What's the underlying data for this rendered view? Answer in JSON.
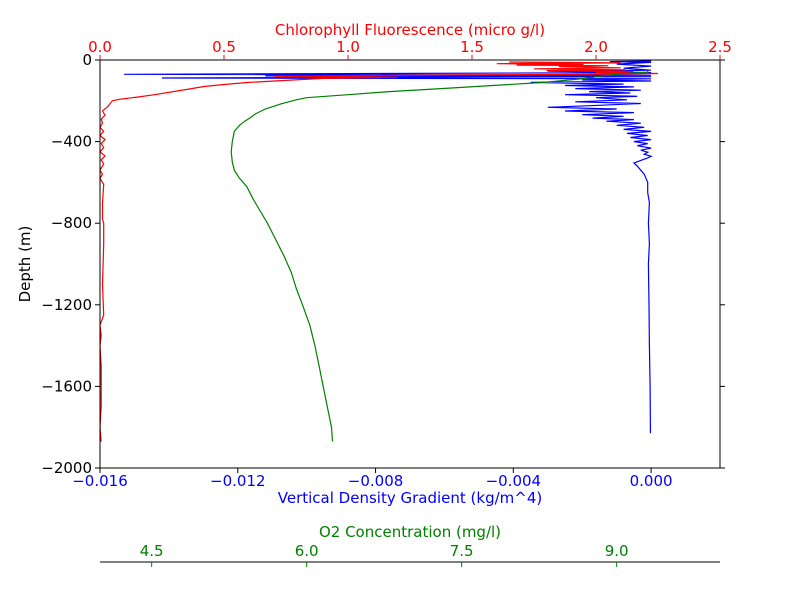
{
  "chart_data": {
    "type": "line",
    "colors": {
      "density": "#0000ff",
      "chlorophyll": "#ff0000",
      "oxygen": "#008000",
      "axis": "#000000"
    },
    "depth_axis": {
      "label": "Depth (m)",
      "ylim": [
        -2000,
        0
      ],
      "ticks": [
        0,
        -400,
        -800,
        -1200,
        -1600,
        -2000
      ],
      "tick_labels": [
        "0",
        "−400",
        "−800",
        "−1200",
        "−1600",
        "−2000"
      ]
    },
    "density_axis": {
      "label": "Vertical Density Gradient (kg/m^4)",
      "xlim": [
        -0.016,
        0.002
      ],
      "ticks": [
        -0.016,
        -0.012,
        -0.008,
        -0.004,
        0.0
      ],
      "tick_labels": [
        "−0.016",
        "−0.012",
        "−0.008",
        "−0.004",
        "0.000"
      ]
    },
    "chlorophyll_axis": {
      "label": "Chlorophyll Fluorescence (micro g/l)",
      "xlim": [
        0,
        2.5
      ],
      "ticks": [
        0,
        0.5,
        1.0,
        1.5,
        2.0,
        2.5
      ],
      "tick_labels": [
        "0.0",
        "0.5",
        "1.0",
        "1.5",
        "2.0",
        "2.5"
      ]
    },
    "oxygen_axis": {
      "label": "O2 Concentration (mg/l)",
      "xlim": [
        4.0,
        10.0
      ],
      "ticks": [
        4.5,
        6.0,
        7.5,
        9.0
      ],
      "tick_labels": [
        "4.5",
        "6.0",
        "7.5",
        "9.0"
      ]
    },
    "series": [
      {
        "key": "density",
        "axis": "density_axis",
        "points": [
          [
            0.0,
            -5
          ],
          [
            -0.0012,
            -8
          ],
          [
            0.0,
            -12
          ],
          [
            -0.001,
            -20
          ],
          [
            0.0,
            -30
          ],
          [
            -0.0008,
            -40
          ],
          [
            0.0,
            -50
          ],
          [
            -0.003,
            -55
          ],
          [
            0.0,
            -62
          ],
          [
            -0.0153,
            -70
          ],
          [
            0.0,
            -75
          ],
          [
            -0.0112,
            -78
          ],
          [
            0.0,
            -82
          ],
          [
            -0.0142,
            -88
          ],
          [
            0.0,
            -92
          ],
          [
            -0.002,
            -98
          ],
          [
            0.0,
            -103
          ],
          [
            -0.0035,
            -110
          ],
          [
            -0.0008,
            -118
          ],
          [
            -0.0025,
            -125
          ],
          [
            -0.0005,
            -132
          ],
          [
            -0.0022,
            -140
          ],
          [
            -0.0003,
            -148
          ],
          [
            -0.0018,
            -155
          ],
          [
            -0.0006,
            -162
          ],
          [
            -0.0025,
            -170
          ],
          [
            -0.0004,
            -178
          ],
          [
            -0.0016,
            -185
          ],
          [
            -0.0007,
            -195
          ],
          [
            -0.0022,
            -205
          ],
          [
            -0.0003,
            -213
          ],
          [
            -0.0015,
            -222
          ],
          [
            -0.003,
            -232
          ],
          [
            -0.001,
            -240
          ],
          [
            -0.0025,
            -250
          ],
          [
            -0.0005,
            -258
          ],
          [
            -0.002,
            -268
          ],
          [
            -0.0008,
            -276
          ],
          [
            -0.0017,
            -285
          ],
          [
            -0.0005,
            -292
          ],
          [
            -0.0013,
            -300
          ],
          [
            -0.0003,
            -310
          ],
          [
            -0.001,
            -320
          ],
          [
            -0.0002,
            -330
          ],
          [
            -0.0008,
            -340
          ],
          [
            0.0,
            -350
          ],
          [
            -0.0007,
            -360
          ],
          [
            -0.0001,
            -370
          ],
          [
            -0.0006,
            -380
          ],
          [
            0.0,
            -390
          ],
          [
            -0.0005,
            -400
          ],
          [
            -0.0001,
            -410
          ],
          [
            -0.0004,
            -420
          ],
          [
            0.0,
            -432
          ],
          [
            -0.0003,
            -442
          ],
          [
            -0.0001,
            -452
          ],
          [
            -0.0002,
            -462
          ],
          [
            0.0,
            -472
          ],
          [
            -0.0001,
            -480
          ],
          [
            -0.0003,
            -492
          ],
          [
            -0.0005,
            -505
          ],
          [
            -0.0004,
            -520
          ],
          [
            -0.0003,
            -540
          ],
          [
            -0.0002,
            -560
          ],
          [
            -0.0001,
            -600
          ],
          [
            -0.0001,
            -650
          ],
          [
            -5e-05,
            -700
          ],
          [
            -8e-05,
            -800
          ],
          [
            -5e-05,
            -900
          ],
          [
            -8e-05,
            -1000
          ],
          [
            -6e-05,
            -1200
          ],
          [
            -5e-05,
            -1400
          ],
          [
            -3e-05,
            -1600
          ],
          [
            -2e-05,
            -1800
          ],
          [
            -2e-05,
            -1830
          ]
        ]
      },
      {
        "key": "chlorophyll",
        "axis": "chlorophyll_axis",
        "points": [
          [
            1.65,
            -10
          ],
          [
            2.1,
            -14
          ],
          [
            1.6,
            -18
          ],
          [
            1.95,
            -22
          ],
          [
            1.68,
            -25
          ],
          [
            2.05,
            -28
          ],
          [
            1.85,
            -32
          ],
          [
            2.1,
            -38
          ],
          [
            1.75,
            -43
          ],
          [
            2.12,
            -48
          ],
          [
            1.8,
            -52
          ],
          [
            2.15,
            -57
          ],
          [
            2.0,
            -62
          ],
          [
            2.25,
            -66
          ],
          [
            1.95,
            -70
          ],
          [
            1.5,
            -73
          ],
          [
            1.1,
            -76
          ],
          [
            0.7,
            -80
          ],
          [
            1.2,
            -84
          ],
          [
            0.9,
            -90
          ],
          [
            0.75,
            -100
          ],
          [
            0.6,
            -110
          ],
          [
            0.5,
            -120
          ],
          [
            0.42,
            -130
          ],
          [
            0.32,
            -150
          ],
          [
            0.22,
            -170
          ],
          [
            0.15,
            -182
          ],
          [
            0.08,
            -192
          ],
          [
            0.05,
            -200
          ],
          [
            0.04,
            -215
          ],
          [
            0.03,
            -230
          ],
          [
            0.01,
            -250
          ],
          [
            0.02,
            -270
          ],
          [
            0.005,
            -290
          ],
          [
            0.01,
            -310
          ],
          [
            0.0,
            -330
          ],
          [
            0.015,
            -350
          ],
          [
            0.0,
            -370
          ],
          [
            0.02,
            -390
          ],
          [
            0.005,
            -410
          ],
          [
            0.015,
            -430
          ],
          [
            0.0,
            -450
          ],
          [
            0.02,
            -470
          ],
          [
            0.005,
            -490
          ],
          [
            0.015,
            -510
          ],
          [
            0.0,
            -540
          ],
          [
            0.01,
            -560
          ],
          [
            0.0,
            -580
          ],
          [
            0.015,
            -610
          ],
          [
            0.01,
            -700
          ],
          [
            0.01,
            -780
          ],
          [
            0.015,
            -800
          ],
          [
            0.015,
            -900
          ],
          [
            0.01,
            -1100
          ],
          [
            0.015,
            -1250
          ],
          [
            0.0,
            -1300
          ],
          [
            0.005,
            -1350
          ],
          [
            0.0,
            -1400
          ],
          [
            0.005,
            -1500
          ],
          [
            0.005,
            -1600
          ],
          [
            0.005,
            -1700
          ],
          [
            0.0,
            -1800
          ],
          [
            0.005,
            -1870
          ]
        ]
      },
      {
        "key": "oxygen",
        "axis": "oxygen_axis",
        "points": [
          [
            9.3,
            -50
          ],
          [
            9.3,
            -60
          ],
          [
            9.1,
            -65
          ],
          [
            8.9,
            -75
          ],
          [
            8.7,
            -90
          ],
          [
            8.3,
            -110
          ],
          [
            7.8,
            -125
          ],
          [
            7.3,
            -140
          ],
          [
            6.8,
            -155
          ],
          [
            6.4,
            -170
          ],
          [
            6.0,
            -185
          ],
          [
            5.9,
            -195
          ],
          [
            5.75,
            -215
          ],
          [
            5.6,
            -240
          ],
          [
            5.5,
            -265
          ],
          [
            5.45,
            -285
          ],
          [
            5.4,
            -300
          ],
          [
            5.35,
            -320
          ],
          [
            5.3,
            -350
          ],
          [
            5.28,
            -400
          ],
          [
            5.27,
            -450
          ],
          [
            5.28,
            -500
          ],
          [
            5.3,
            -540
          ],
          [
            5.35,
            -580
          ],
          [
            5.42,
            -620
          ],
          [
            5.48,
            -680
          ],
          [
            5.55,
            -740
          ],
          [
            5.62,
            -800
          ],
          [
            5.7,
            -880
          ],
          [
            5.78,
            -960
          ],
          [
            5.85,
            -1040
          ],
          [
            5.9,
            -1120
          ],
          [
            5.96,
            -1200
          ],
          [
            6.03,
            -1300
          ],
          [
            6.08,
            -1400
          ],
          [
            6.12,
            -1500
          ],
          [
            6.16,
            -1600
          ],
          [
            6.2,
            -1700
          ],
          [
            6.24,
            -1800
          ],
          [
            6.25,
            -1870
          ]
        ]
      }
    ]
  }
}
